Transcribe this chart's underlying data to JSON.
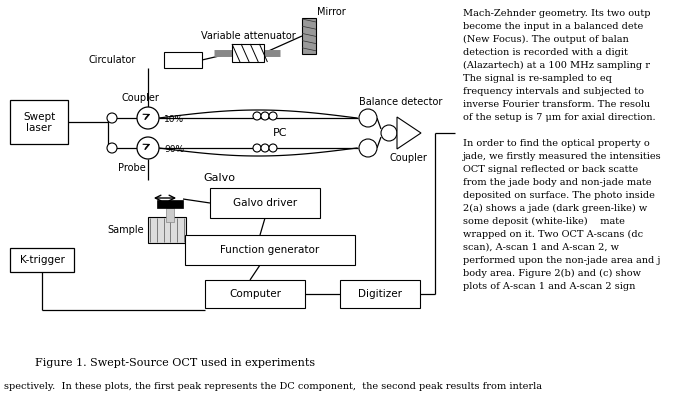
{
  "bg_color": "#ffffff",
  "fig_caption": "Figure 1. Swept-Source OCT used in experiments",
  "right_text_lines": [
    "Mach-Zehnder geometry. Its two outp",
    "become the input in a balanced dete",
    "(New Focus). The output of balan",
    "detection is recorded with a digit",
    "(Alazartech) at a 100 MHz sampling r",
    "The signal is re-sampled to eq",
    "frequency intervals and subjected to",
    "inverse Fourier transform. The resolu",
    "of the setup is 7 μm for axial direction.",
    "",
    "In order to find the optical property o",
    "jade, we firstly measured the intensities",
    "OCT signal reflected or back scatte",
    "from the jade body and non-jade mate",
    "deposited on surface. The photo inside",
    "2(a) shows a jade (dark green-like) w",
    "some deposit (white-like)    mate",
    "wrapped on it. Two OCT A-scans (dc",
    "scan), A-scan 1 and A-scan 2, w",
    "performed upon the non-jade area and j",
    "body area. Figure 2(b) and (c) show",
    "plots of A-scan 1 and A-scan 2 sign"
  ],
  "bottom_text": "spectively.  In these plots, the first peak represents the DC component,  the second peak results from interla"
}
